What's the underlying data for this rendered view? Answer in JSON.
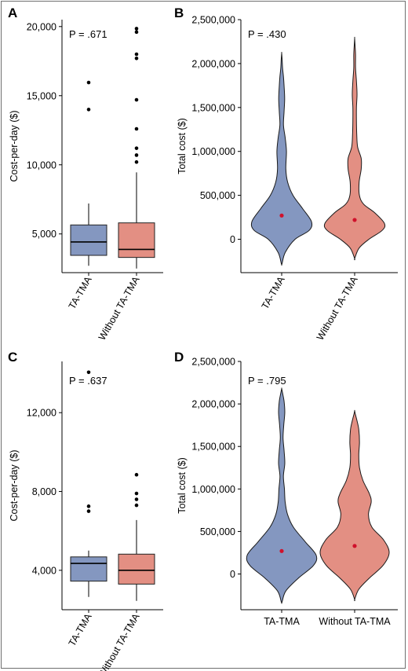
{
  "chart_data": [
    {
      "panel": "A",
      "type": "box",
      "ylabel": "Cost-per-day ($)",
      "p_label": "P = .671",
      "ylim": [
        2200,
        20500
      ],
      "y_ticks": [
        5000,
        10000,
        15000,
        20000
      ],
      "y_tick_labels": [
        "5,000",
        "10,000",
        "15,000",
        "20,000"
      ],
      "categories": [
        "TA-TMA",
        "Without TA-TMA"
      ],
      "series": [
        {
          "name": "TA-TMA",
          "color": "#8497c0",
          "whisker_low": 2700,
          "q1": 3450,
          "median": 4420,
          "q3": 5650,
          "whisker_high": 7200,
          "outliers": [
            14000,
            15950
          ]
        },
        {
          "name": "Without TA-TMA",
          "color": "#e38f83",
          "whisker_low": 2500,
          "q1": 3300,
          "median": 3880,
          "q3": 5800,
          "whisker_high": 9450,
          "outliers": [
            10200,
            10700,
            11200,
            12600,
            14700,
            17700,
            18000,
            19600,
            19850
          ]
        }
      ]
    },
    {
      "panel": "B",
      "type": "violin",
      "ylabel": "Total cost ($)",
      "p_label": "P = .430",
      "ylim": [
        -380000,
        2500000
      ],
      "y_ticks": [
        0,
        500000,
        1000000,
        1500000,
        2000000,
        2500000
      ],
      "y_tick_labels": [
        "0",
        "500,000",
        "1,000,000",
        "1,500,000",
        "2,000,000",
        "2,500,000"
      ],
      "categories": [
        "TA-TMA",
        "Without TA-TMA"
      ],
      "series": [
        {
          "name": "TA-TMA",
          "color": "#8497c0",
          "mean": 270000,
          "profile": [
            [
              -280000,
              0.01
            ],
            [
              -150000,
              0.12
            ],
            [
              0,
              0.45
            ],
            [
              100000,
              0.92
            ],
            [
              200000,
              1.0
            ],
            [
              350000,
              0.7
            ],
            [
              500000,
              0.38
            ],
            [
              650000,
              0.2
            ],
            [
              800000,
              0.14
            ],
            [
              1000000,
              0.16
            ],
            [
              1150000,
              0.12
            ],
            [
              1300000,
              0.06
            ],
            [
              1450000,
              0.08
            ],
            [
              1600000,
              0.1
            ],
            [
              1750000,
              0.08
            ],
            [
              1850000,
              0.06
            ],
            [
              1950000,
              0.03
            ],
            [
              2050000,
              0.015
            ],
            [
              2120000,
              0.0
            ]
          ]
        },
        {
          "name": "Without TA-TMA",
          "color": "#e38f83",
          "mean": 220000,
          "profile": [
            [
              -220000,
              0.0
            ],
            [
              -100000,
              0.15
            ],
            [
              0,
              0.48
            ],
            [
              100000,
              0.92
            ],
            [
              180000,
              1.0
            ],
            [
              300000,
              0.68
            ],
            [
              400000,
              0.3
            ],
            [
              500000,
              0.16
            ],
            [
              650000,
              0.15
            ],
            [
              800000,
              0.22
            ],
            [
              920000,
              0.22
            ],
            [
              1050000,
              0.1
            ],
            [
              1200000,
              0.07
            ],
            [
              1350000,
              0.06
            ],
            [
              1500000,
              0.06
            ],
            [
              1650000,
              0.08
            ],
            [
              1800000,
              0.06
            ],
            [
              1950000,
              0.03
            ],
            [
              2100000,
              0.03
            ],
            [
              2200000,
              0.015
            ],
            [
              2290000,
              0.0
            ]
          ]
        }
      ]
    },
    {
      "panel": "C",
      "type": "box",
      "ylabel": "Cost-per-day ($)",
      "p_label": "P = .637",
      "ylim": [
        2000,
        14600
      ],
      "y_ticks": [
        4000,
        8000,
        12000
      ],
      "y_tick_labels": [
        "4,000",
        "8,000",
        "12,000"
      ],
      "categories": [
        "TA-TMA",
        "Without TA-TMA"
      ],
      "series": [
        {
          "name": "TA-TMA",
          "color": "#8497c0",
          "whisker_low": 2650,
          "q1": 3450,
          "median": 4350,
          "q3": 4680,
          "whisker_high": 5000,
          "outliers": [
            7000,
            7250,
            14050
          ]
        },
        {
          "name": "Without TA-TMA",
          "color": "#e38f83",
          "whisker_low": 2450,
          "q1": 3300,
          "median": 4000,
          "q3": 4820,
          "whisker_high": 6550,
          "outliers": [
            7300,
            7600,
            7900,
            8850
          ]
        }
      ]
    },
    {
      "panel": "D",
      "type": "violin",
      "ylabel": "Total cost ($)",
      "p_label": "P = .795",
      "ylim": [
        -420000,
        2500000
      ],
      "y_ticks": [
        0,
        500000,
        1000000,
        1500000,
        2000000,
        2500000
      ],
      "y_tick_labels": [
        "0",
        "500,000",
        "1,000,000",
        "1,500,000",
        "2,000,000",
        "2,500,000"
      ],
      "categories": [
        "TA-TMA",
        "Without TA-TMA"
      ],
      "series": [
        {
          "name": "TA-TMA",
          "color": "#8497c0",
          "mean": 270000,
          "profile": [
            [
              -330000,
              0.01
            ],
            [
              -200000,
              0.12
            ],
            [
              -50000,
              0.48
            ],
            [
              100000,
              0.92
            ],
            [
              220000,
              1.0
            ],
            [
              380000,
              0.68
            ],
            [
              550000,
              0.34
            ],
            [
              700000,
              0.17
            ],
            [
              850000,
              0.1
            ],
            [
              1000000,
              0.08
            ],
            [
              1150000,
              0.05
            ],
            [
              1300000,
              0.09
            ],
            [
              1450000,
              0.07
            ],
            [
              1600000,
              0.04
            ],
            [
              1750000,
              0.06
            ],
            [
              1900000,
              0.09
            ],
            [
              2030000,
              0.07
            ],
            [
              2120000,
              0.03
            ],
            [
              2180000,
              0.0
            ]
          ]
        },
        {
          "name": "Without TA-TMA",
          "color": "#e38f83",
          "mean": 330000,
          "profile": [
            [
              -300000,
              0.0
            ],
            [
              -180000,
              0.12
            ],
            [
              -50000,
              0.42
            ],
            [
              100000,
              0.82
            ],
            [
              250000,
              1.0
            ],
            [
              400000,
              0.84
            ],
            [
              550000,
              0.5
            ],
            [
              700000,
              0.4
            ],
            [
              850000,
              0.48
            ],
            [
              950000,
              0.42
            ],
            [
              1100000,
              0.24
            ],
            [
              1250000,
              0.14
            ],
            [
              1400000,
              0.12
            ],
            [
              1550000,
              0.14
            ],
            [
              1700000,
              0.12
            ],
            [
              1800000,
              0.07
            ],
            [
              1880000,
              0.02
            ],
            [
              1920000,
              0.0
            ]
          ]
        }
      ]
    }
  ]
}
